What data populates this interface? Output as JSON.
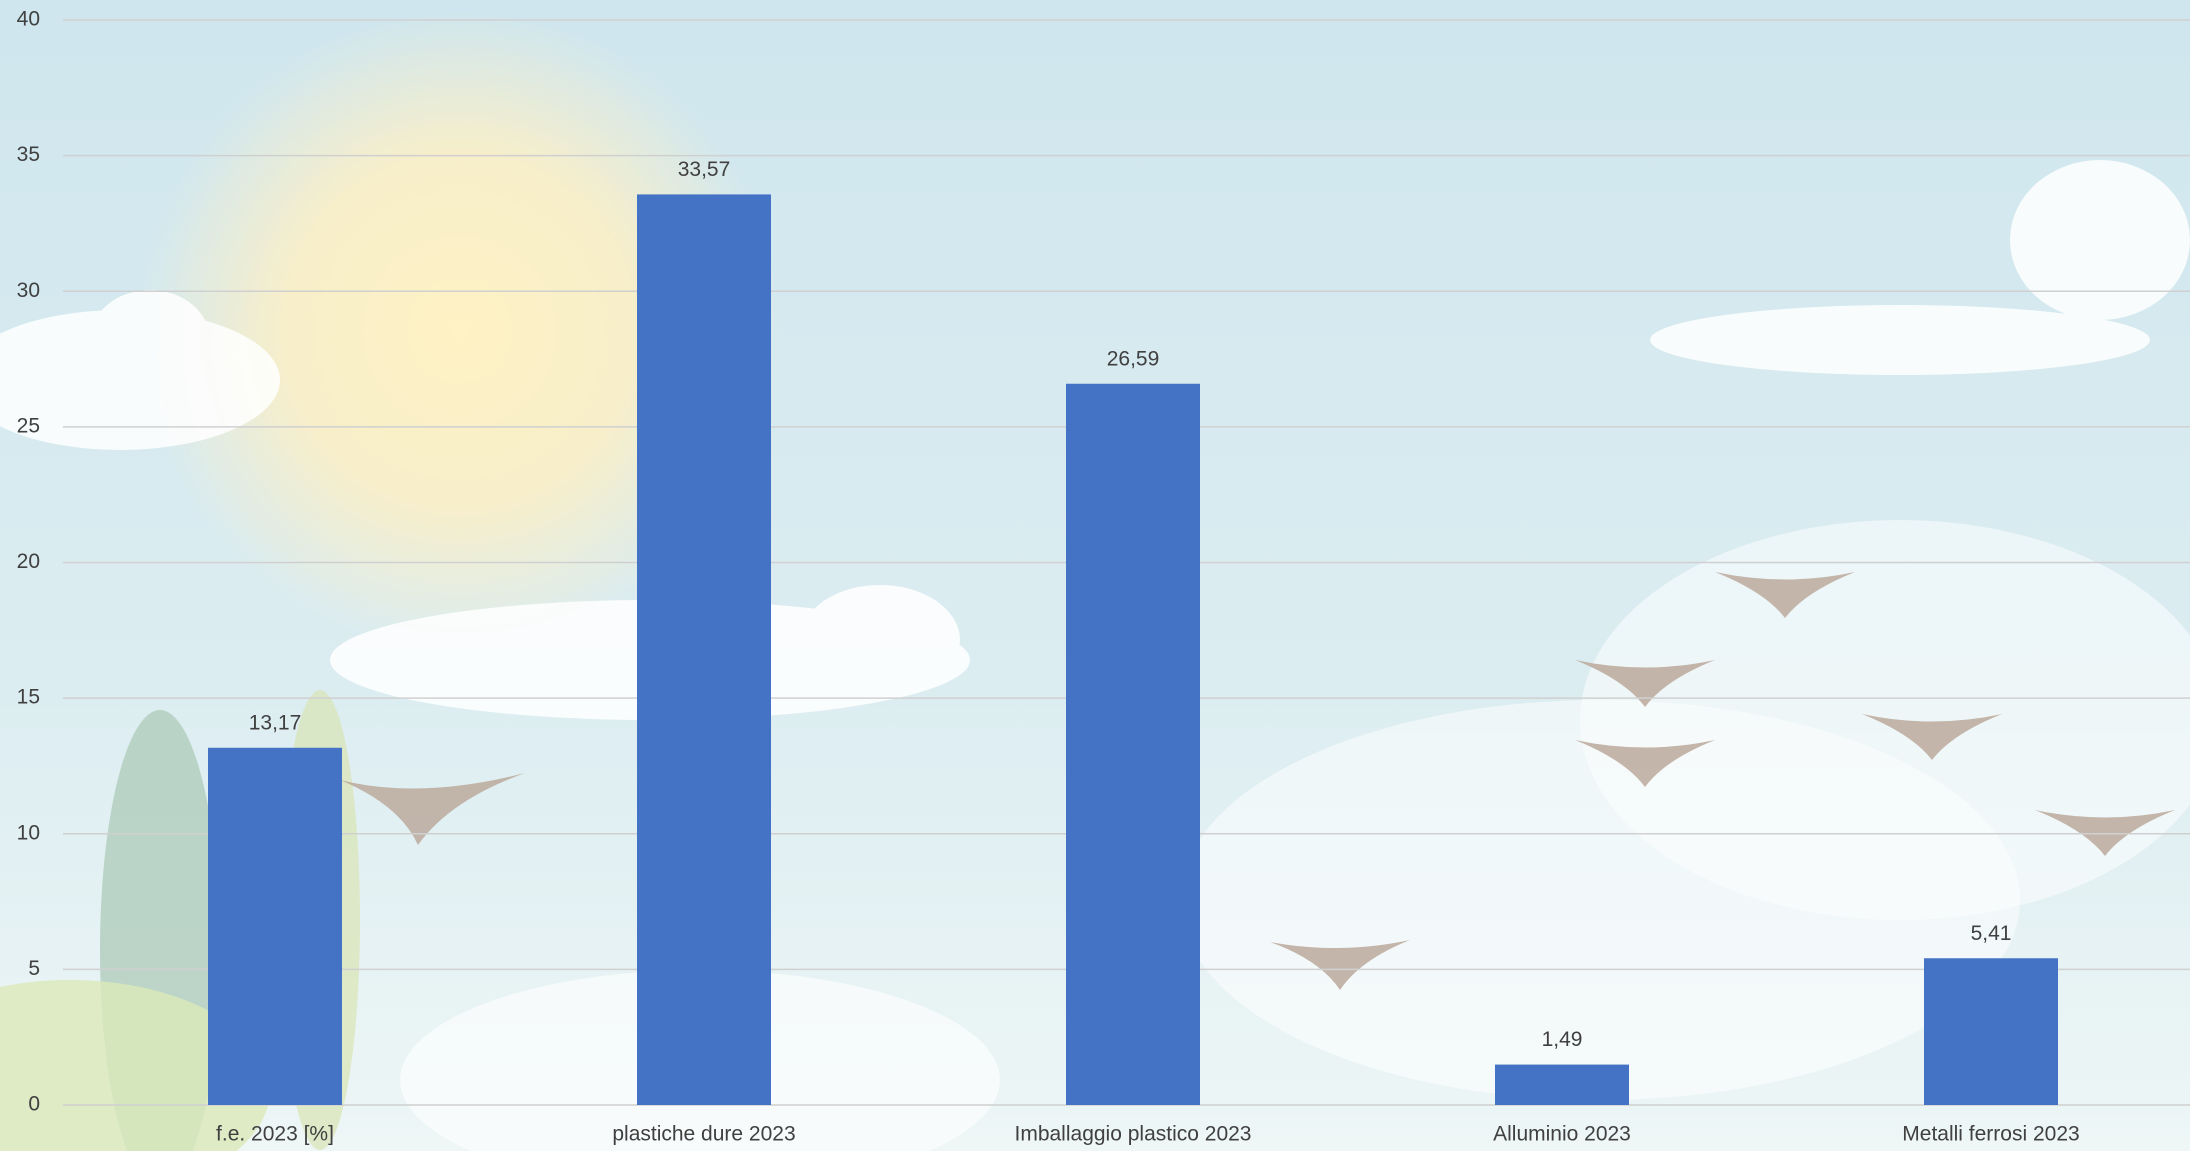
{
  "chart_data": {
    "type": "bar",
    "categories": [
      "f.e. 2023 [%]",
      "plastiche dure 2023",
      "Imballaggio plastico 2023",
      "Alluminio 2023",
      "Metalli ferrosi 2023"
    ],
    "values": [
      13.17,
      33.57,
      26.59,
      1.49,
      5.41
    ],
    "value_labels": [
      "13,17",
      "33,57",
      "26,59",
      "1,49",
      "5,41"
    ],
    "color": "#4472c4",
    "ylim": [
      0,
      40
    ],
    "yticks": [
      0,
      5,
      10,
      15,
      20,
      25,
      30,
      35,
      40
    ],
    "grid": true
  }
}
